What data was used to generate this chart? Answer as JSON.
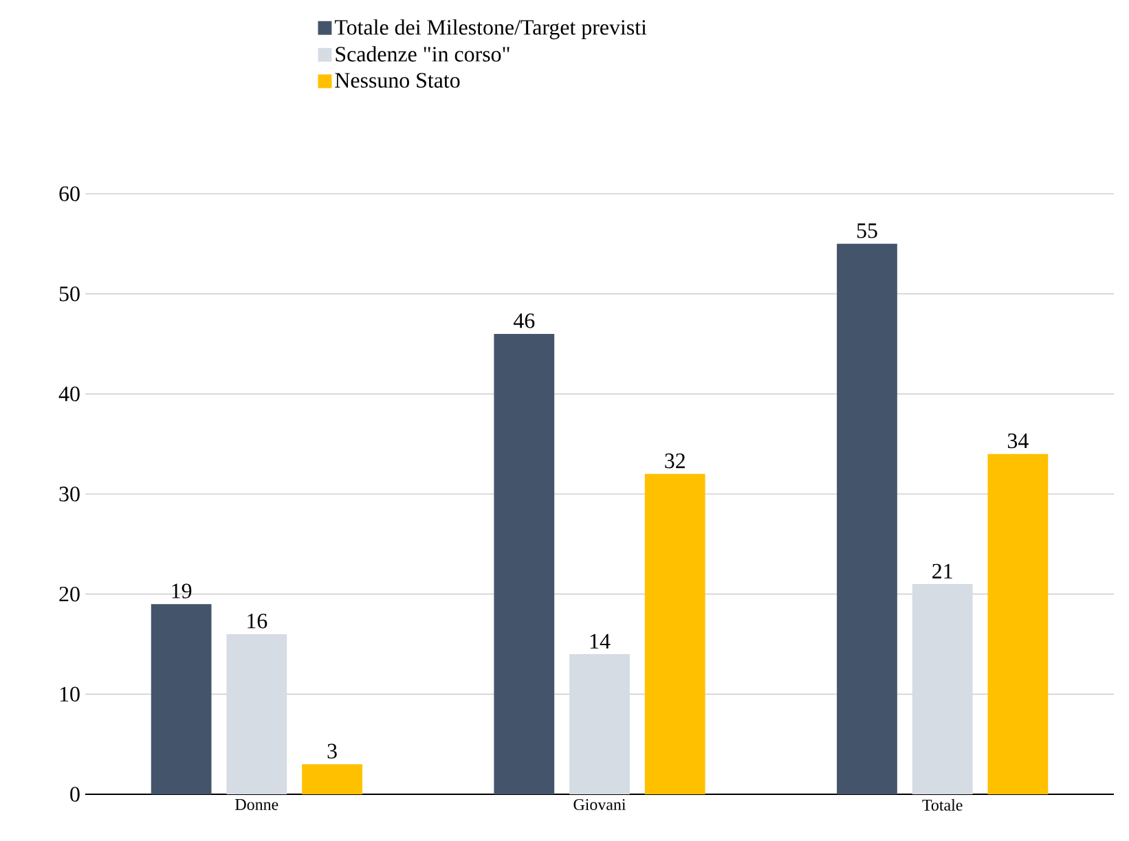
{
  "chart_data": {
    "type": "bar",
    "categories": [
      "Donne",
      "Giovani",
      "Totale"
    ],
    "series": [
      {
        "name": "Totale dei Milestone/Target previsti",
        "color": "#44546a",
        "values": [
          19,
          46,
          55
        ]
      },
      {
        "name": "Scadenze \"in corso\"",
        "color": "#d6dce4",
        "values": [
          16,
          14,
          21
        ]
      },
      {
        "name": "Nessuno Stato",
        "color": "#ffc000",
        "values": [
          3,
          32,
          34
        ]
      }
    ],
    "ylim": [
      0,
      60
    ],
    "yticks": [
      0,
      10,
      20,
      30,
      40,
      50,
      60
    ],
    "grid": "y",
    "legend": "top",
    "data_labels": true
  }
}
